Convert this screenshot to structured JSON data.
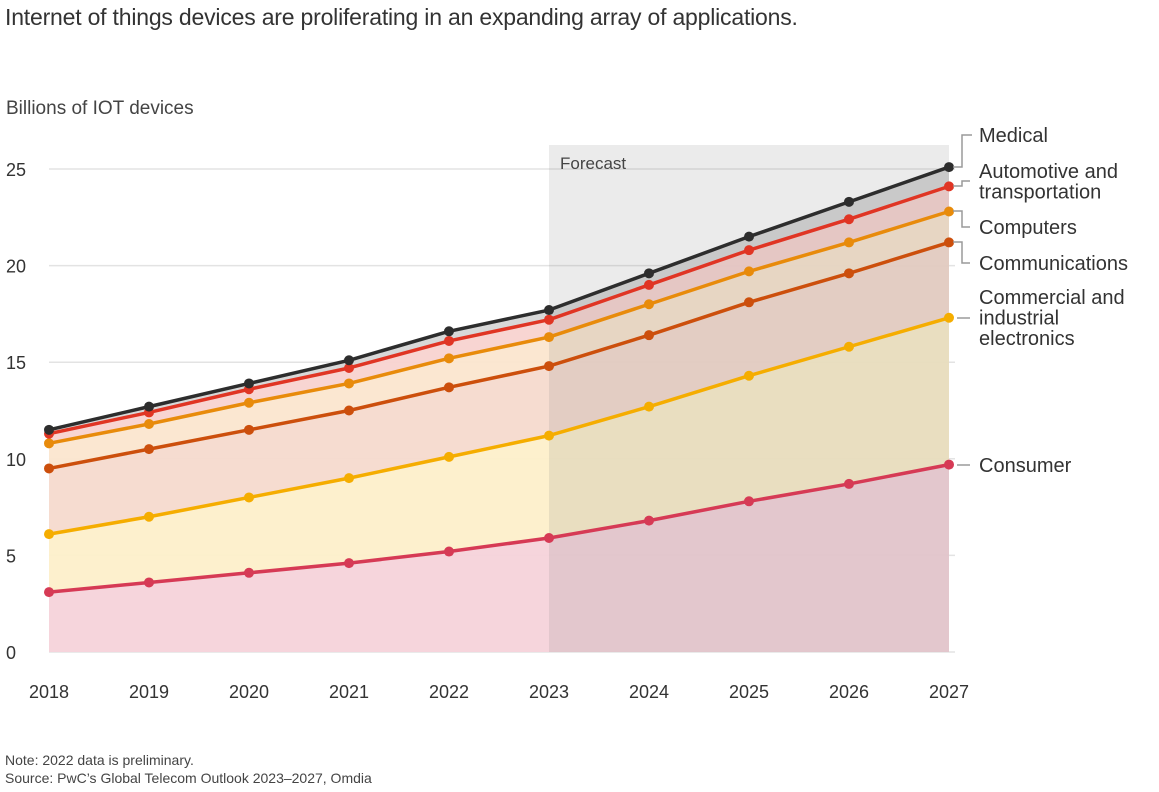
{
  "title": "Internet of things devices are proliferating in an expanding array of applications.",
  "footer": {
    "note": "Note: 2022 data is preliminary.",
    "source": "Source: PwC’s Global Telecom Outlook 2023–2027, Omdia"
  },
  "chart_data": {
    "type": "area",
    "stacked": true,
    "title": "Internet of things devices are proliferating in an expanding array of applications.",
    "ylabel": "Billions of IOT devices",
    "xlabel": "",
    "x": [
      "2018",
      "2019",
      "2020",
      "2021",
      "2022",
      "2023",
      "2024",
      "2025",
      "2026",
      "2027"
    ],
    "ylim": [
      0,
      25
    ],
    "yticks": [
      0,
      5,
      10,
      15,
      20,
      25
    ],
    "grid": true,
    "forecast": {
      "label": "Forecast",
      "from": "2023",
      "to": "2027"
    },
    "legend_placement": "right (direct labels)",
    "series_note": "values are cumulative (stacked top of each layer)",
    "series": [
      {
        "name": "Consumer",
        "color": "#d63a55",
        "fill": "#f6d3da",
        "cumulative": [
          3.1,
          3.6,
          4.1,
          4.6,
          5.2,
          5.9,
          6.8,
          7.8,
          8.7,
          9.7
        ]
      },
      {
        "name": "Commercial and industrial electronics",
        "color": "#f5ad00",
        "fill": "#fdefca",
        "cumulative": [
          6.1,
          7.0,
          8.0,
          9.0,
          10.1,
          11.2,
          12.7,
          14.3,
          15.8,
          17.3
        ]
      },
      {
        "name": "Communications",
        "color": "#cc4f0c",
        "fill": "#f6dacd",
        "cumulative": [
          9.5,
          10.5,
          11.5,
          12.5,
          13.7,
          14.8,
          16.4,
          18.1,
          19.6,
          21.2
        ]
      },
      {
        "name": "Computers",
        "color": "#e88b0b",
        "fill": "#fbe6cf",
        "cumulative": [
          10.8,
          11.8,
          12.9,
          13.9,
          15.2,
          16.3,
          18.0,
          19.7,
          21.2,
          22.8
        ]
      },
      {
        "name": "Automotive and transportation",
        "color": "#e03524",
        "fill": "#f8d3d0",
        "cumulative": [
          11.3,
          12.4,
          13.6,
          14.7,
          16.1,
          17.2,
          19.0,
          20.8,
          22.4,
          24.1
        ]
      },
      {
        "name": "Medical",
        "color": "#2d2d2d",
        "fill": "#d6d6d6",
        "cumulative": [
          11.5,
          12.7,
          13.9,
          15.1,
          16.6,
          17.7,
          19.6,
          21.5,
          23.3,
          25.1
        ]
      }
    ],
    "legend": [
      {
        "series": "Medical",
        "lines": [
          "Medical"
        ]
      },
      {
        "series": "Automotive and transportation",
        "lines": [
          "Automotive and",
          "transportation"
        ]
      },
      {
        "series": "Computers",
        "lines": [
          "Computers"
        ]
      },
      {
        "series": "Communications",
        "lines": [
          "Communications"
        ]
      },
      {
        "series": "Commercial and industrial electronics",
        "lines": [
          "Commercial and",
          "industrial",
          "electronics"
        ]
      },
      {
        "series": "Consumer",
        "lines": [
          "Consumer"
        ]
      }
    ]
  }
}
